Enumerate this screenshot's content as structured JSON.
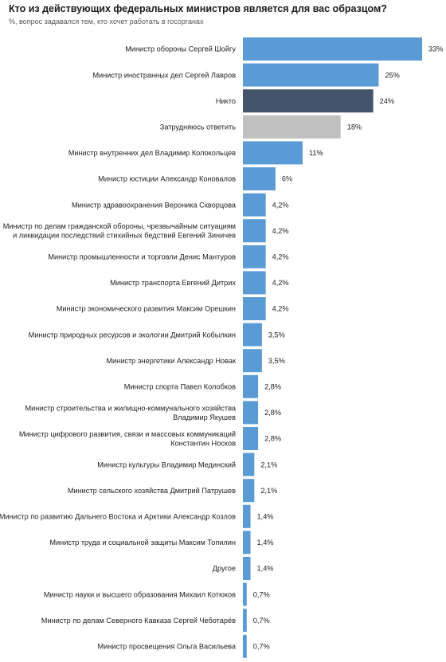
{
  "title": "Кто из действующих федеральных министров является для вас образцом?",
  "subtitle": "%, вопрос задавался тем, кто хочет работать в госорганах",
  "colors": {
    "default": "#5b9bd5",
    "nobody": "#44546a",
    "unsure": "#c0c0c0"
  },
  "chart_data": {
    "type": "bar",
    "orientation": "horizontal",
    "title": "Кто из действующих федеральных министров является для вас образцом?",
    "subtitle": "%, вопрос задавался тем, кто хочет работать в госорганах",
    "xlim": [
      0,
      33
    ],
    "grid": false,
    "categories": [
      [
        "Министр обороны Сергей Шойгу"
      ],
      [
        "Министр иностранных дел Сергей Лавров"
      ],
      [
        "Никто"
      ],
      [
        "Затрудняюсь ответить"
      ],
      [
        "Министр внутренних дел Владимир Колокольцев"
      ],
      [
        "Министр юстиции Александр Коновалов"
      ],
      [
        "Министр здравоохранения Вероника Скворцова"
      ],
      [
        "Министр по делам гражданской обороны, чрезвычайным ситуациям",
        "и ликвидации последствий стихийных бедствий Евгений Зиничев"
      ],
      [
        "Министр промышленности и торговли Денис Мантуров"
      ],
      [
        "Министр транспорта Евгений Дитрих"
      ],
      [
        "Министр экономического развития Максим Орешкин"
      ],
      [
        "Министр природных ресурсов и экологии Дмитрий Кобылкин"
      ],
      [
        "Министр энергетики Александр Новак"
      ],
      [
        "Министр спорта Павел Колобков"
      ],
      [
        "Министр строительства и жилищно-коммунального хозяйства",
        "Владимир Якушев"
      ],
      [
        "Министр цифрового развития, связи и массовых коммуникаций",
        "Константин Носков"
      ],
      [
        "Министр культуры Владимир Мединский"
      ],
      [
        "Министр сельского хозяйства Дмитрий Патрушев"
      ],
      [
        "Министр по развитию Дальнего Востока и Арктики Александр Козлов"
      ],
      [
        "Министр труда и социальной защиты Максим Топилин"
      ],
      [
        "Другое"
      ],
      [
        "Министр науки и высшего образования Михаил Котюков"
      ],
      [
        "Министр по делам Северного Кавказа Сергей Чеботарёв"
      ],
      [
        "Министр просвещения Ольга Васильева"
      ]
    ],
    "values": [
      33,
      25,
      24,
      18,
      11,
      6,
      4.2,
      4.2,
      4.2,
      4.2,
      4.2,
      3.5,
      3.5,
      2.8,
      2.8,
      2.8,
      2.1,
      2.1,
      1.4,
      1.4,
      1.4,
      0.7,
      0.7,
      0.7
    ],
    "value_labels": [
      "33%",
      "25%",
      "24%",
      "18%",
      "11%",
      "6%",
      "4,2%",
      "4,2%",
      "4,2%",
      "4,2%",
      "4,2%",
      "3,5%",
      "3,5%",
      "2,8%",
      "2,8%",
      "2,8%",
      "2,1%",
      "2,1%",
      "1,4%",
      "1,4%",
      "1,4%",
      "0,7%",
      "0,7%",
      "0,7%"
    ],
    "bar_colors": [
      "default",
      "default",
      "nobody",
      "unsure",
      "default",
      "default",
      "default",
      "default",
      "default",
      "default",
      "default",
      "default",
      "default",
      "default",
      "default",
      "default",
      "default",
      "default",
      "default",
      "default",
      "default",
      "default",
      "default",
      "default"
    ]
  }
}
